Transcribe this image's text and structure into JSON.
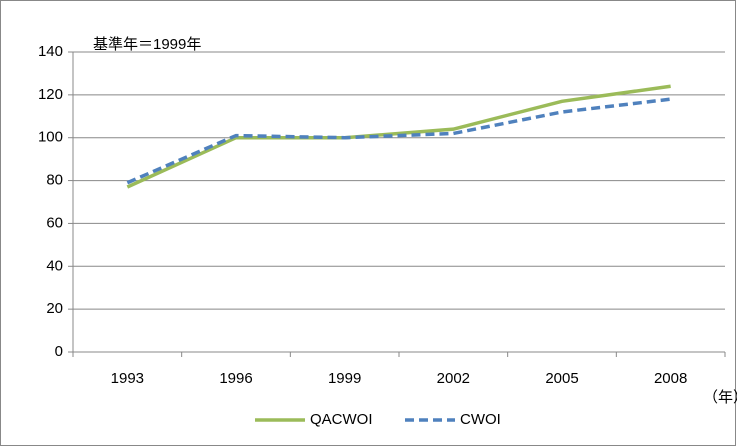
{
  "chart_data": {
    "type": "line",
    "annotation": "基準年＝1999年",
    "x_unit_label": "（年）",
    "categories": [
      "1993",
      "1996",
      "1999",
      "2002",
      "2005",
      "2008"
    ],
    "series": [
      {
        "name": "QACWOI",
        "color": "#9bbb59",
        "dashed": false,
        "values": [
          77,
          100,
          100,
          104,
          117,
          124
        ]
      },
      {
        "name": "CWOI",
        "color": "#4f81bd",
        "dashed": true,
        "values": [
          79,
          101,
          100,
          102,
          112,
          118
        ]
      }
    ],
    "ylim": [
      0,
      140
    ],
    "yticks": [
      0,
      20,
      40,
      60,
      80,
      100,
      120,
      140
    ],
    "grid": true,
    "legend": "bottom"
  }
}
